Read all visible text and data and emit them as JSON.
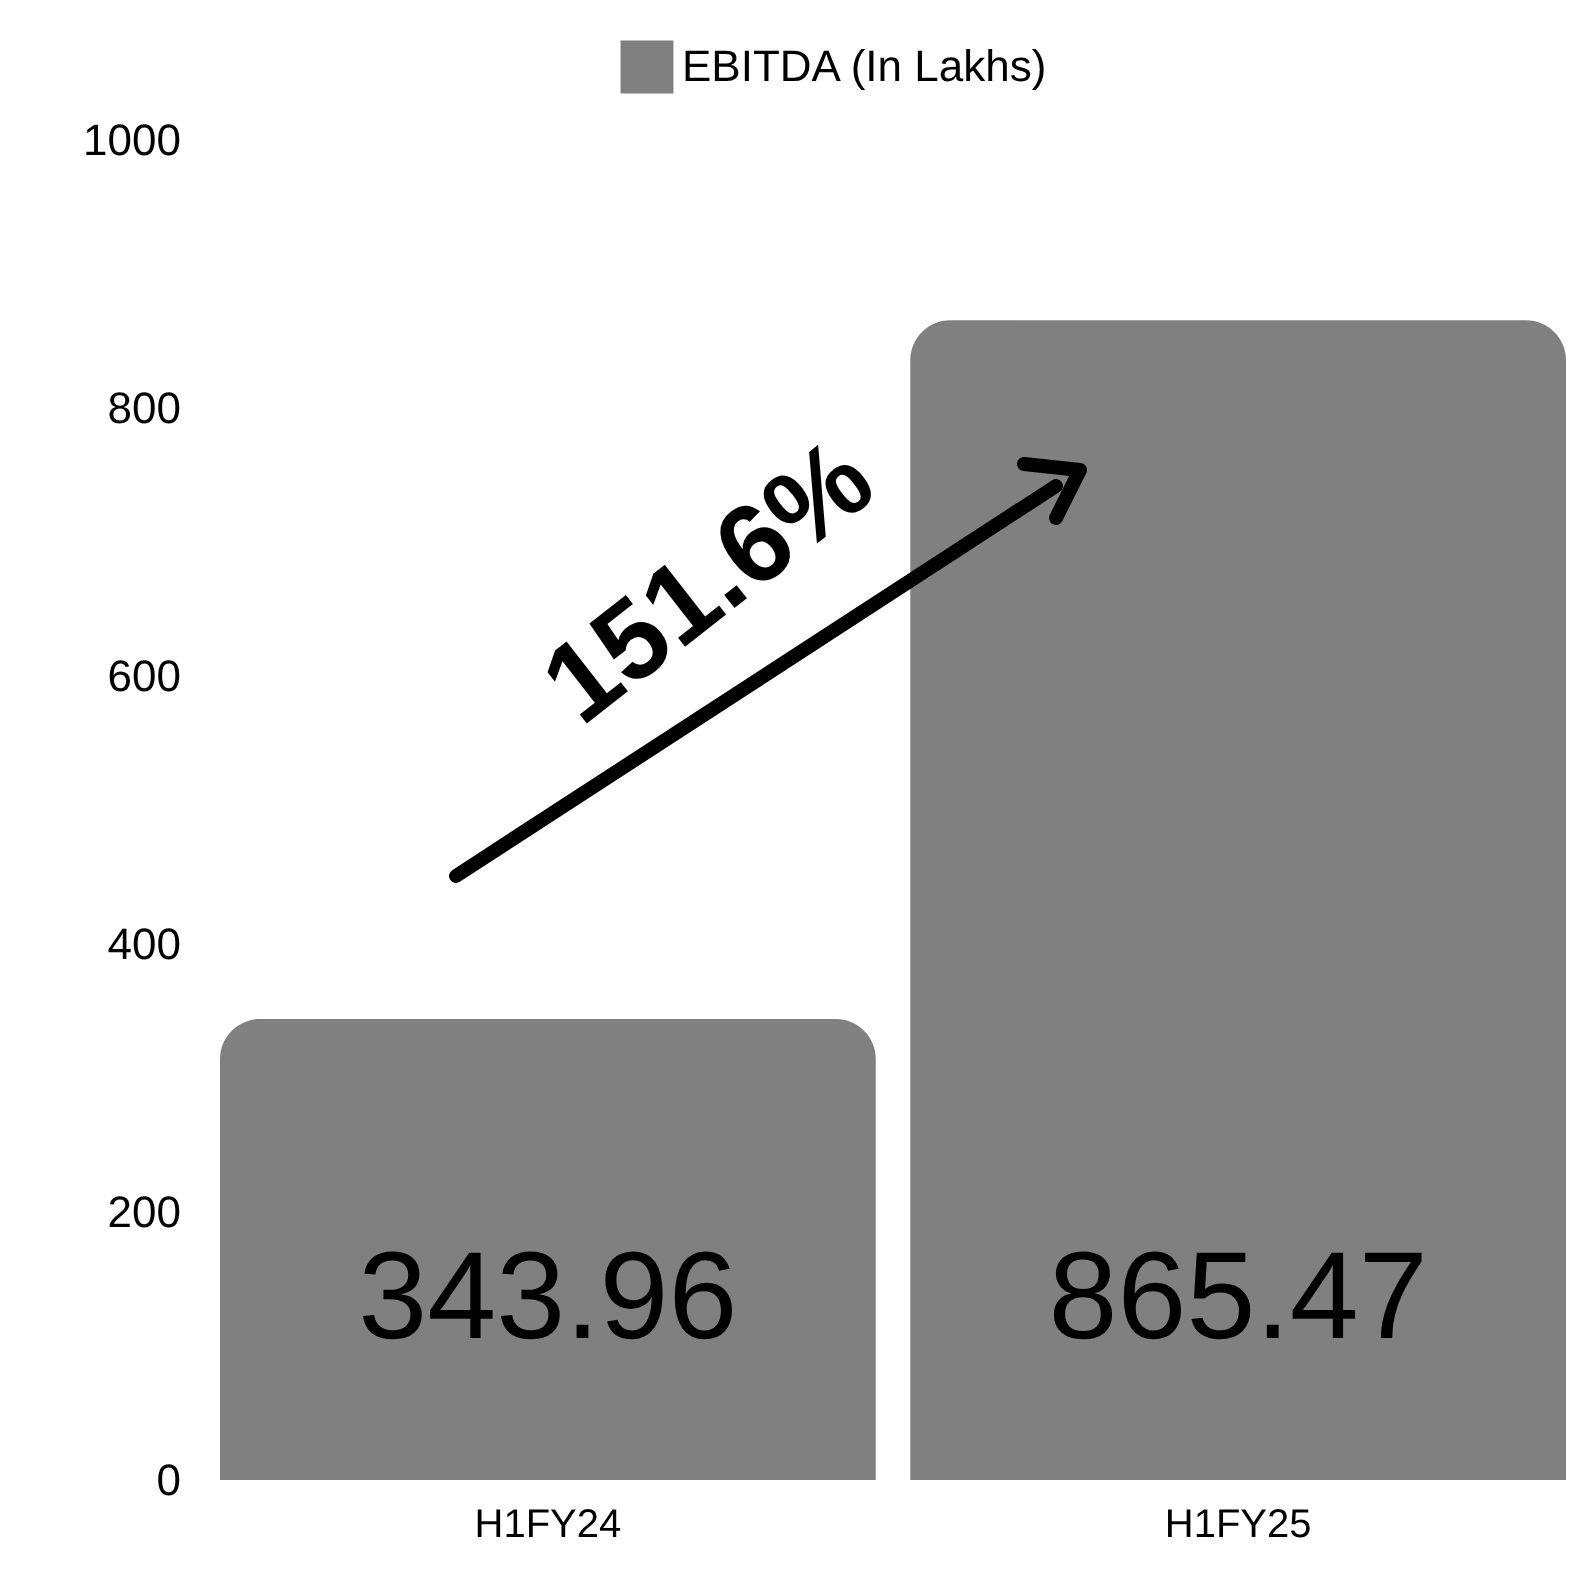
{
  "chart_data": {
    "type": "bar",
    "categories": [
      "H1FY24",
      "H1FY25"
    ],
    "series": [
      {
        "name": "EBITDA (In Lakhs)",
        "color": "#808080",
        "values": [
          343.96,
          865.47
        ]
      }
    ],
    "ylim": [
      0,
      1000
    ],
    "yticks": [
      0,
      200,
      400,
      600,
      800,
      1000
    ],
    "grid": false,
    "legend": "top",
    "data_labels": true,
    "annotations": [
      "151.6%"
    ]
  }
}
